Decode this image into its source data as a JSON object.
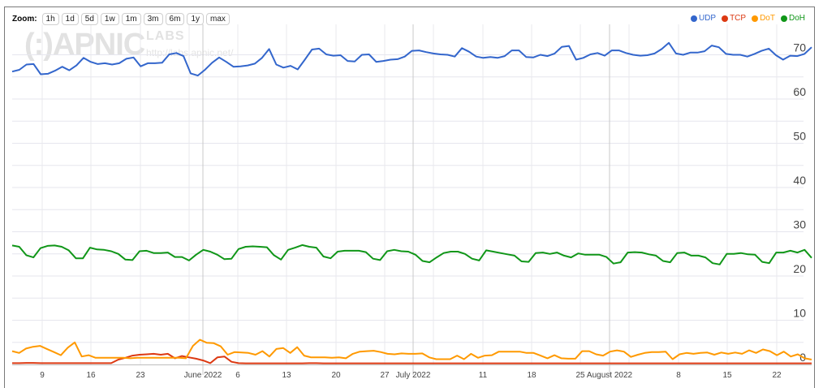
{
  "zoom_bar": {
    "label": "Zoom:",
    "buttons": [
      "1h",
      "1d",
      "5d",
      "1w",
      "1m",
      "3m",
      "6m",
      "1y",
      "max"
    ]
  },
  "watermark": {
    "logo": "(:)APNIC",
    "labs": "LABS",
    "url": "http://labs.apnic.net/"
  },
  "legend": [
    {
      "name": "UDP",
      "color": "#3366cc"
    },
    {
      "name": "TCP",
      "color": "#dc3912"
    },
    {
      "name": "DoT",
      "color": "#ff9900"
    },
    {
      "name": "DoH",
      "color": "#109618"
    }
  ],
  "chart_data": {
    "type": "line",
    "title": "",
    "xlabel": "",
    "ylabel": "",
    "ylim": [
      0,
      73
    ],
    "y_ticks": [
      0,
      10,
      20,
      30,
      40,
      50,
      60,
      70
    ],
    "y_axis_position": "right",
    "grid": true,
    "legend_position": "top-right",
    "x_tick_labels": [
      "9",
      "16",
      "23",
      "June 2022",
      "6",
      "13",
      "20",
      "27",
      "July 2022",
      "11",
      "18",
      "25",
      "August 2022",
      "8",
      "15",
      "22"
    ],
    "x_range": "~May 3 2022 to ~Aug 27 2022 (daily)",
    "series": [
      {
        "name": "UDP",
        "color": "#3366cc",
        "values": [
          66.2,
          66.6,
          67.8,
          67.9,
          65.6,
          65.7,
          66.4,
          67.3,
          66.5,
          67.6,
          69.3,
          68.4,
          67.9,
          68.1,
          67.8,
          68.1,
          69.1,
          69.4,
          67.4,
          68.1,
          68.1,
          68.2,
          70.1,
          70.4,
          69.7,
          65.8,
          65.3,
          66.6,
          68.2,
          69.4,
          68.4,
          67.3,
          67.4,
          67.6,
          68.0,
          69.3,
          71.3,
          67.8,
          67.1,
          67.5,
          66.7,
          68.9,
          71.2,
          71.4,
          70.1,
          69.8,
          69.9,
          68.6,
          68.5,
          70.0,
          70.1,
          68.4,
          68.6,
          68.9,
          69.0,
          69.6,
          70.9,
          71.0,
          70.6,
          70.3,
          70.1,
          70.0,
          69.6,
          71.5,
          70.7,
          69.6,
          69.3,
          69.5,
          69.3,
          69.7,
          71.0,
          71.0,
          69.5,
          69.4,
          70.0,
          69.7,
          70.3,
          71.8,
          72.0,
          68.9,
          69.3,
          70.1,
          70.4,
          69.8,
          71.0,
          71.0,
          70.4,
          70.0,
          69.8,
          69.9,
          70.3,
          71.3,
          72.7,
          70.3,
          70.0,
          70.5,
          70.5,
          70.8,
          72.1,
          71.7,
          70.2,
          70.0,
          70.0,
          69.6,
          70.2,
          70.9,
          71.4,
          69.9,
          68.9,
          69.8,
          69.7,
          70.2,
          71.7
        ]
      },
      {
        "name": "TCP",
        "color": "#dc3912",
        "values": [
          0.3,
          0.3,
          0.35,
          0.35,
          0.3,
          0.3,
          0.3,
          0.3,
          0.3,
          0.3,
          0.3,
          0.3,
          0.3,
          0.3,
          0.3,
          1.1,
          1.5,
          2.0,
          2.2,
          2.3,
          2.4,
          2.2,
          2.4,
          1.4,
          1.9,
          1.6,
          1.3,
          0.9,
          0.3,
          1.6,
          1.8,
          0.6,
          0.3,
          0.25,
          0.25,
          0.25,
          0.25,
          0.25,
          0.25,
          0.25,
          0.25,
          0.25,
          0.3,
          0.3,
          0.25,
          0.25,
          0.25,
          0.25,
          0.25,
          0.25,
          0.25,
          0.25,
          0.25,
          0.25,
          0.25,
          0.25,
          0.25,
          0.25,
          0.25,
          0.25,
          0.25,
          0.25,
          0.25,
          0.25,
          0.25,
          0.25,
          0.25,
          0.25,
          0.25,
          0.25,
          0.25,
          0.25,
          0.25,
          0.25,
          0.25,
          0.25,
          0.25,
          0.25,
          0.25,
          0.25,
          0.25,
          0.25,
          0.25,
          0.25,
          0.25,
          0.25,
          0.25,
          0.25,
          0.25,
          0.25,
          0.25,
          0.25,
          0.25,
          0.25,
          0.25,
          0.25,
          0.25,
          0.25,
          0.25,
          0.25,
          0.25,
          0.25,
          0.25,
          0.25,
          0.25,
          0.25,
          0.25,
          0.25,
          0.25,
          0.25,
          0.25,
          0.25,
          0.25,
          0.25
        ]
      },
      {
        "name": "DoT",
        "color": "#ff9900",
        "values": [
          3.0,
          2.6,
          3.6,
          4.0,
          4.2,
          3.5,
          2.8,
          2.1,
          3.8,
          5.0,
          1.8,
          2.1,
          1.5,
          1.5,
          1.5,
          1.5,
          1.5,
          1.4,
          1.5,
          1.5,
          1.5,
          1.5,
          1.5,
          1.5,
          1.5,
          1.4,
          4.2,
          5.6,
          4.9,
          4.8,
          4.1,
          2.2,
          2.8,
          2.7,
          2.6,
          2.2,
          3.0,
          1.8,
          3.5,
          3.7,
          2.6,
          3.9,
          2.0,
          1.6,
          1.6,
          1.6,
          1.5,
          1.6,
          1.4,
          2.4,
          2.9,
          3.0,
          3.1,
          2.8,
          2.4,
          2.3,
          2.5,
          2.4,
          2.4,
          2.5,
          1.6,
          1.2,
          1.2,
          1.2,
          2.0,
          1.2,
          2.4,
          1.5,
          2.0,
          2.1,
          2.9,
          2.9,
          2.9,
          2.9,
          2.6,
          2.6,
          2.0,
          1.4,
          2.1,
          1.4,
          1.3,
          1.3,
          3.0,
          3.0,
          2.3,
          2.0,
          2.9,
          3.2,
          2.9,
          1.7,
          2.2,
          2.6,
          2.8,
          2.8,
          2.9,
          1.2,
          2.3,
          2.6,
          2.4,
          2.6,
          2.7,
          2.2,
          2.7,
          2.4,
          2.7,
          2.4,
          3.2,
          2.6,
          3.4,
          3.0,
          2.1,
          2.9,
          1.8,
          2.3,
          1.4,
          1.1
        ]
      },
      {
        "name": "DoH",
        "color": "#109618",
        "values": [
          26.9,
          26.6,
          24.7,
          24.2,
          26.3,
          26.8,
          26.9,
          26.6,
          25.8,
          24.0,
          24.0,
          26.4,
          26.0,
          25.9,
          25.6,
          25.0,
          23.7,
          23.6,
          25.6,
          25.7,
          25.2,
          25.2,
          25.3,
          24.3,
          24.3,
          23.5,
          24.8,
          25.9,
          25.5,
          24.8,
          23.8,
          23.9,
          26.1,
          26.6,
          26.7,
          26.6,
          26.5,
          24.7,
          23.7,
          25.9,
          26.4,
          27.0,
          26.6,
          26.4,
          24.4,
          24.0,
          25.5,
          25.7,
          25.7,
          25.7,
          25.4,
          23.9,
          23.6,
          25.6,
          25.9,
          25.6,
          25.5,
          24.8,
          23.4,
          23.1,
          24.2,
          25.2,
          25.5,
          25.5,
          25.0,
          23.9,
          23.5,
          25.8,
          25.5,
          25.2,
          24.9,
          24.6,
          23.3,
          23.2,
          25.2,
          25.3,
          25.0,
          25.3,
          24.6,
          24.2,
          25.1,
          24.8,
          24.8,
          24.8,
          24.3,
          22.8,
          23.1,
          25.3,
          25.4,
          25.3,
          24.9,
          24.6,
          23.4,
          23.1,
          25.2,
          25.3,
          24.6,
          24.6,
          24.2,
          22.9,
          22.6,
          25.0,
          25.0,
          25.2,
          24.9,
          24.8,
          23.2,
          22.9,
          25.3,
          25.3,
          25.7,
          25.3,
          25.9,
          24.1
        ]
      }
    ]
  }
}
